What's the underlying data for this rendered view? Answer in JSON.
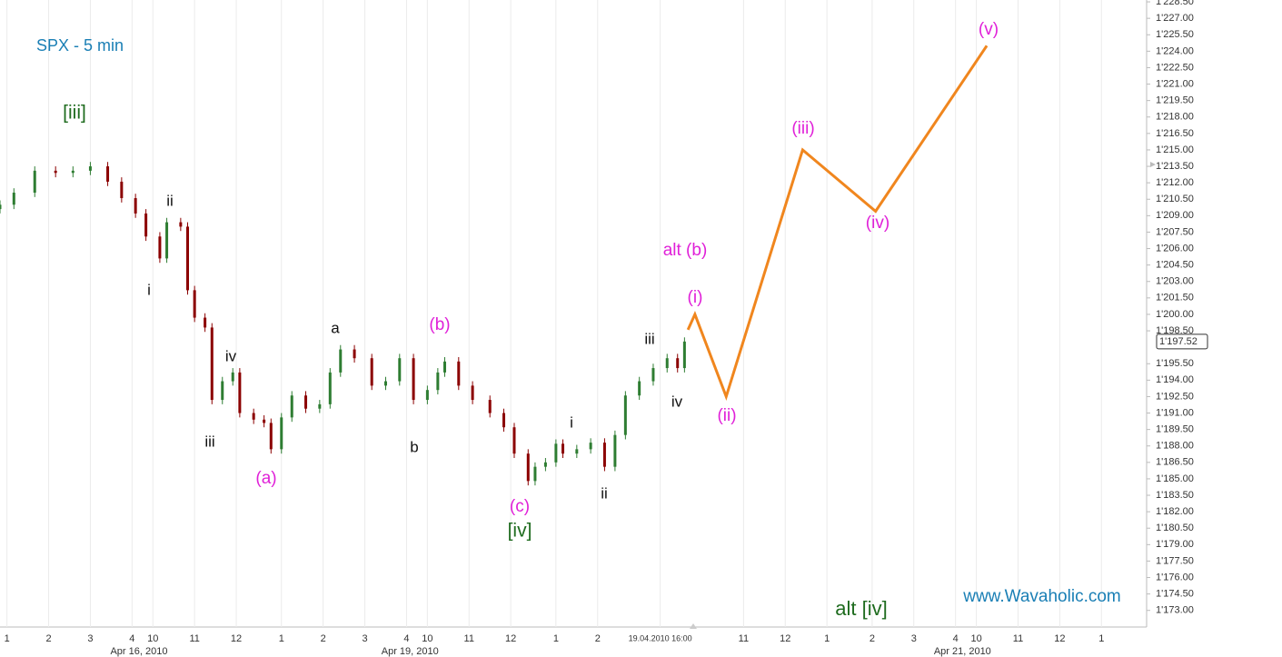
{
  "chart_data": {
    "type": "candlestick",
    "title": "SPX - 5 min",
    "title_color": "#1a7fb5",
    "watermark": "www.Wavaholic.com",
    "watermark_color": "#1a7fb5",
    "xlim": [
      0,
      330
    ],
    "ylim": [
      1171.9,
      1228.67
    ],
    "grid": true,
    "up_color": "#2e7d32",
    "down_color": "#8b0000",
    "x": [
      0,
      4,
      10,
      16,
      21,
      26,
      31,
      35,
      39,
      42,
      46,
      48,
      52,
      54,
      56,
      59,
      61,
      64,
      67,
      69,
      73,
      76,
      78,
      81,
      84,
      88,
      92,
      95,
      98,
      102,
      107,
      111,
      115,
      119,
      123,
      126,
      128,
      132,
      136,
      141,
      145,
      148,
      152,
      154,
      157,
      160,
      162,
      166,
      170,
      174,
      177,
      180,
      184,
      188,
      192,
      195,
      197
    ],
    "open": [
      1209.6,
      1210.0,
      1211.1,
      1213.1,
      1212.9,
      1213.1,
      1213.5,
      1212.1,
      1210.6,
      1209.2,
      1207.1,
      1205.1,
      1208.4,
      1208.0,
      1202.2,
      1199.7,
      1198.8,
      1192.2,
      1193.9,
      1194.7,
      1191.0,
      1190.4,
      1190.1,
      1187.7,
      1190.6,
      1192.6,
      1191.4,
      1191.8,
      1194.7,
      1196.8,
      1196.0,
      1193.5,
      1193.9,
      1196.0,
      1192.2,
      1193.1,
      1194.7,
      1195.7,
      1193.5,
      1192.2,
      1191.0,
      1189.7,
      1187.3,
      1184.8,
      1186.1,
      1186.5,
      1188.2,
      1187.3,
      1187.7,
      1188.3,
      1186.1,
      1189.0,
      1192.6,
      1193.9,
      1195.1,
      1196.0,
      1195.1
    ],
    "high": [
      1210.4,
      1211.5,
      1213.5,
      1213.5,
      1213.5,
      1213.9,
      1213.9,
      1212.5,
      1211.0,
      1209.6,
      1207.5,
      1208.8,
      1208.8,
      1208.4,
      1202.6,
      1200.1,
      1199.2,
      1194.3,
      1195.1,
      1195.1,
      1191.4,
      1190.8,
      1190.5,
      1191.0,
      1193.0,
      1193.0,
      1192.2,
      1195.1,
      1197.2,
      1197.2,
      1196.4,
      1194.3,
      1196.4,
      1196.4,
      1193.5,
      1195.1,
      1196.1,
      1196.1,
      1193.9,
      1192.6,
      1191.4,
      1190.1,
      1187.7,
      1186.5,
      1186.9,
      1188.6,
      1188.6,
      1188.1,
      1188.7,
      1188.7,
      1189.4,
      1193.0,
      1194.3,
      1195.5,
      1196.4,
      1196.4,
      1197.9
    ],
    "low": [
      1209.2,
      1209.6,
      1210.7,
      1212.5,
      1212.5,
      1212.7,
      1211.7,
      1210.2,
      1208.8,
      1206.7,
      1204.7,
      1204.7,
      1207.6,
      1201.8,
      1199.3,
      1198.4,
      1191.8,
      1191.8,
      1193.5,
      1190.6,
      1190.0,
      1189.7,
      1187.3,
      1187.3,
      1190.2,
      1191.0,
      1191.0,
      1191.4,
      1194.3,
      1195.6,
      1193.1,
      1193.1,
      1193.5,
      1191.8,
      1191.8,
      1192.7,
      1194.3,
      1193.1,
      1191.8,
      1190.6,
      1189.3,
      1186.9,
      1184.4,
      1184.4,
      1185.7,
      1186.1,
      1186.9,
      1186.9,
      1187.3,
      1185.7,
      1185.7,
      1188.6,
      1192.2,
      1193.5,
      1194.7,
      1194.7,
      1194.7
    ],
    "close": [
      1210.0,
      1211.1,
      1213.1,
      1212.9,
      1213.1,
      1213.5,
      1212.1,
      1210.6,
      1209.2,
      1207.1,
      1205.1,
      1208.4,
      1208.0,
      1202.2,
      1199.7,
      1198.8,
      1192.2,
      1193.9,
      1194.7,
      1191.0,
      1190.4,
      1190.1,
      1187.7,
      1190.6,
      1192.6,
      1191.4,
      1191.8,
      1194.7,
      1196.8,
      1196.0,
      1193.5,
      1193.9,
      1196.0,
      1192.2,
      1193.1,
      1194.7,
      1195.7,
      1193.5,
      1192.2,
      1191.0,
      1189.7,
      1187.3,
      1184.8,
      1186.1,
      1186.5,
      1188.2,
      1187.3,
      1187.7,
      1188.3,
      1186.1,
      1189.0,
      1192.6,
      1193.9,
      1195.1,
      1196.0,
      1195.1,
      1197.52
    ],
    "projection": {
      "color": "#f0861e",
      "x": [
        198,
        200,
        209,
        231,
        252,
        284
      ],
      "values": [
        1198.6,
        1200.0,
        1192.5,
        1215.0,
        1209.4,
        1224.5
      ]
    },
    "last_price": {
      "value": 1197.52,
      "label": "1'197.52"
    },
    "yticks": [
      {
        "value": 1173.0,
        "label": "1'173.00"
      },
      {
        "value": 1174.5,
        "label": "1'174.50"
      },
      {
        "value": 1176.0,
        "label": "1'176.00"
      },
      {
        "value": 1177.5,
        "label": "1'177.50"
      },
      {
        "value": 1179.0,
        "label": "1'179.00"
      },
      {
        "value": 1180.5,
        "label": "1'180.50"
      },
      {
        "value": 1182.0,
        "label": "1'182.00"
      },
      {
        "value": 1183.5,
        "label": "1'183.50"
      },
      {
        "value": 1185.0,
        "label": "1'185.00"
      },
      {
        "value": 1186.5,
        "label": "1'186.50"
      },
      {
        "value": 1188.0,
        "label": "1'188.00"
      },
      {
        "value": 1189.5,
        "label": "1'189.50"
      },
      {
        "value": 1191.0,
        "label": "1'191.00"
      },
      {
        "value": 1192.5,
        "label": "1'192.50"
      },
      {
        "value": 1194.0,
        "label": "1'194.00"
      },
      {
        "value": 1195.5,
        "label": "1'195.50"
      },
      {
        "value": 1198.5,
        "label": "1'198.50"
      },
      {
        "value": 1200.0,
        "label": "1'200.00"
      },
      {
        "value": 1201.5,
        "label": "1'201.50"
      },
      {
        "value": 1203.0,
        "label": "1'203.00"
      },
      {
        "value": 1204.5,
        "label": "1'204.50"
      },
      {
        "value": 1206.0,
        "label": "1'206.00"
      },
      {
        "value": 1207.5,
        "label": "1'207.50"
      },
      {
        "value": 1209.0,
        "label": "1'209.00"
      },
      {
        "value": 1210.5,
        "label": "1'210.50"
      },
      {
        "value": 1212.0,
        "label": "1'212.00"
      },
      {
        "value": 1213.5,
        "label": "1'213.50"
      },
      {
        "value": 1215.0,
        "label": "1'215.00"
      },
      {
        "value": 1216.5,
        "label": "1'216.50"
      },
      {
        "value": 1218.0,
        "label": "1'218.00"
      },
      {
        "value": 1219.5,
        "label": "1'219.50"
      },
      {
        "value": 1221.0,
        "label": "1'221.00"
      },
      {
        "value": 1222.5,
        "label": "1'222.50"
      },
      {
        "value": 1224.0,
        "label": "1'224.00"
      },
      {
        "value": 1225.5,
        "label": "1'225.50"
      },
      {
        "value": 1227.0,
        "label": "1'227.00"
      },
      {
        "value": 1228.5,
        "label": "1'228.50"
      }
    ],
    "xticks": [
      {
        "value": 2,
        "label": "1"
      },
      {
        "value": 14,
        "label": "2"
      },
      {
        "value": 26,
        "label": "3"
      },
      {
        "value": 38,
        "label": "4"
      },
      {
        "value": 44,
        "label": "10"
      },
      {
        "value": 56,
        "label": "11"
      },
      {
        "value": 68,
        "label": "12"
      },
      {
        "value": 81,
        "label": "1"
      },
      {
        "value": 93,
        "label": "2"
      },
      {
        "value": 105,
        "label": "3"
      },
      {
        "value": 117,
        "label": "4"
      },
      {
        "value": 123,
        "label": "10"
      },
      {
        "value": 135,
        "label": "11"
      },
      {
        "value": 147,
        "label": "12"
      },
      {
        "value": 160,
        "label": "1"
      },
      {
        "value": 172,
        "label": "2"
      },
      {
        "value": 190,
        "label": "19.04.2010 16:00"
      },
      {
        "value": 214,
        "label": "11"
      },
      {
        "value": 226,
        "label": "12"
      },
      {
        "value": 238,
        "label": "1"
      },
      {
        "value": 251,
        "label": "2"
      },
      {
        "value": 263,
        "label": "3"
      },
      {
        "value": 275,
        "label": "4"
      },
      {
        "value": 281,
        "label": "10"
      },
      {
        "value": 293,
        "label": "11"
      },
      {
        "value": 305,
        "label": "12"
      },
      {
        "value": 317,
        "label": "1"
      }
    ],
    "date_ticks": [
      {
        "value": 40,
        "label": "Apr 16, 2010"
      },
      {
        "value": 118,
        "label": "Apr 19, 2010"
      },
      {
        "value": 277,
        "label": "Apr 21, 2010"
      }
    ],
    "annotations": [
      {
        "text": "[iii]",
        "color": "#1e6b1e"
      },
      {
        "text": "ii",
        "color": "#111111"
      },
      {
        "text": "i",
        "color": "#111111"
      },
      {
        "text": "iv",
        "color": "#111111"
      },
      {
        "text": "iii",
        "color": "#111111"
      },
      {
        "text": "(a)",
        "color": "#e020d8"
      },
      {
        "text": "a",
        "color": "#111111"
      },
      {
        "text": "b",
        "color": "#111111"
      },
      {
        "text": "(b)",
        "color": "#e020d8"
      },
      {
        "text": "(c)",
        "color": "#e020d8"
      },
      {
        "text": "[iv]",
        "color": "#1e6b1e"
      },
      {
        "text": "i",
        "color": "#111111"
      },
      {
        "text": "ii",
        "color": "#111111"
      },
      {
        "text": "iii",
        "color": "#111111"
      },
      {
        "text": "iv",
        "color": "#111111"
      },
      {
        "text": "alt (b)",
        "color": "#e020d8"
      },
      {
        "text": "(i)",
        "color": "#e020d8"
      },
      {
        "text": "(ii)",
        "color": "#e020d8"
      },
      {
        "text": "(iii)",
        "color": "#e020d8"
      },
      {
        "text": "(iv)",
        "color": "#e020d8"
      },
      {
        "text": "(v)",
        "color": "#e020d8"
      },
      {
        "text": "alt [iv]",
        "color": "#1e6b1e"
      }
    ]
  }
}
